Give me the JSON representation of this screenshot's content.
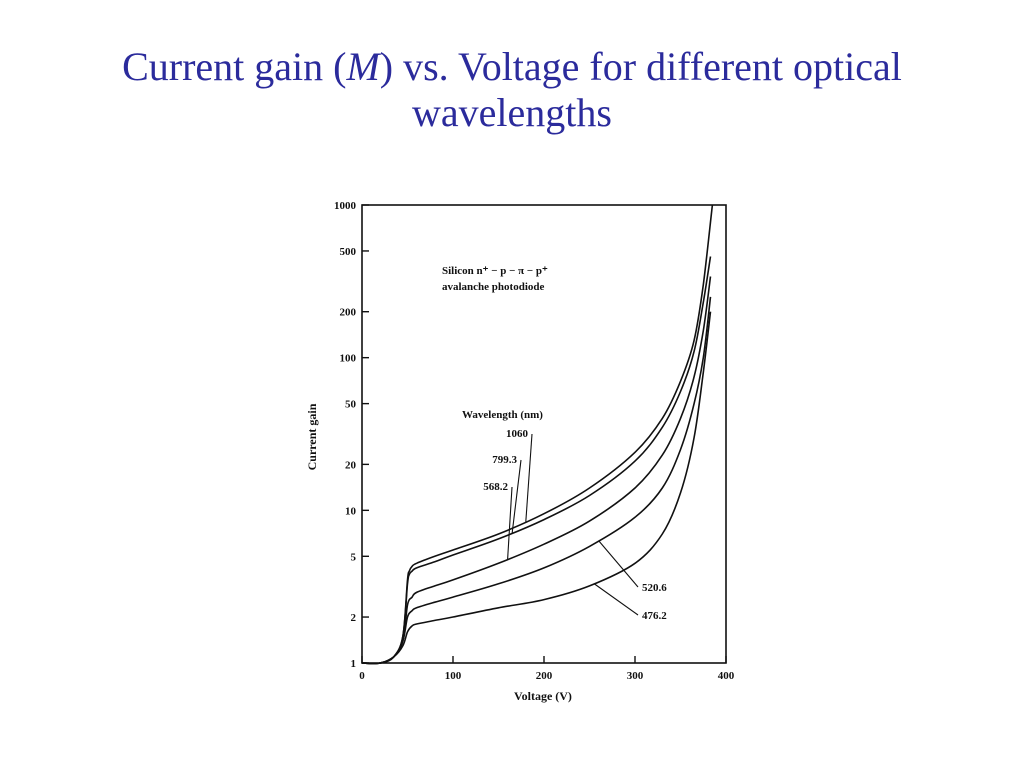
{
  "slide": {
    "title_line1": "Current gain (M) vs. Voltage for different optical",
    "title_line1_prefix": "Current gain (",
    "title_line1_italic": "M",
    "title_line1_suffix": ") vs. Voltage for different optical",
    "title_line2": "wavelengths",
    "title_color": "#2b2b9c"
  },
  "chart_data": {
    "type": "line",
    "xlabel": "Voltage (V)",
    "ylabel": "Current gain",
    "xlim": [
      0,
      400
    ],
    "ylim": [
      1,
      1000
    ],
    "yscale": "log",
    "x_ticks": [
      "0",
      "100",
      "200",
      "300",
      "400"
    ],
    "y_ticks": [
      "1",
      "2",
      "5",
      "10",
      "20",
      "50",
      "100",
      "200",
      "500",
      "1000"
    ],
    "y_tick_values": [
      1,
      2,
      5,
      10,
      20,
      50,
      100,
      200,
      500,
      1000
    ],
    "x_tick_values": [
      0,
      100,
      200,
      300,
      400
    ],
    "annotation_line1": "Silicon n⁺ − p − π − p⁺",
    "annotation_line2": "avalanche photodiode",
    "legend_title": "Wavelength (nm)",
    "grid": false,
    "series": [
      {
        "name": "1060",
        "x": [
          0,
          20,
          35,
          45,
          50,
          52,
          55,
          60,
          80,
          100,
          150,
          200,
          250,
          300,
          330,
          350,
          365,
          375,
          385
        ],
        "y": [
          1,
          1,
          1.1,
          1.5,
          3.5,
          4.0,
          4.3,
          4.5,
          5.0,
          5.5,
          7.0,
          9.5,
          14,
          24,
          40,
          70,
          130,
          300,
          1000
        ]
      },
      {
        "name": "799.3",
        "x": [
          0,
          20,
          35,
          45,
          50,
          52,
          55,
          60,
          80,
          100,
          150,
          200,
          250,
          300,
          330,
          350,
          365,
          375,
          383
        ],
        "y": [
          1,
          1,
          1.1,
          1.5,
          3.3,
          3.8,
          4.0,
          4.2,
          4.6,
          5.1,
          6.5,
          8.7,
          12.5,
          21,
          35,
          60,
          110,
          230,
          460
        ]
      },
      {
        "name": "568.2",
        "x": [
          0,
          20,
          35,
          45,
          50,
          55,
          60,
          80,
          100,
          150,
          200,
          250,
          300,
          330,
          350,
          365,
          375,
          383
        ],
        "y": [
          1,
          1,
          1.1,
          1.4,
          2.4,
          2.7,
          2.9,
          3.2,
          3.5,
          4.5,
          6.0,
          8.5,
          14,
          23,
          40,
          75,
          150,
          340
        ]
      },
      {
        "name": "520.6",
        "x": [
          0,
          20,
          35,
          45,
          50,
          55,
          60,
          80,
          100,
          150,
          200,
          250,
          300,
          330,
          350,
          365,
          375,
          383
        ],
        "y": [
          1,
          1,
          1.1,
          1.4,
          2.0,
          2.2,
          2.3,
          2.5,
          2.7,
          3.3,
          4.2,
          5.8,
          9.0,
          14,
          25,
          50,
          100,
          250
        ]
      },
      {
        "name": "476.2",
        "x": [
          0,
          20,
          35,
          45,
          50,
          55,
          60,
          80,
          100,
          150,
          200,
          250,
          300,
          330,
          350,
          365,
          375,
          383
        ],
        "y": [
          1,
          1,
          1.1,
          1.3,
          1.6,
          1.75,
          1.8,
          1.9,
          2.0,
          2.3,
          2.6,
          3.2,
          4.5,
          7,
          13,
          30,
          80,
          200
        ]
      }
    ]
  }
}
